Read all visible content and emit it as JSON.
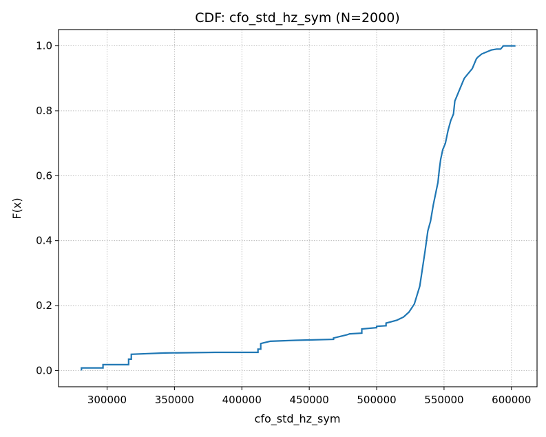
{
  "chart_data": {
    "type": "line",
    "title": "CDF: cfo_std_hz_sym  (N=2000)",
    "xlabel": "cfo_std_hz_sym",
    "ylabel": "F(x)",
    "xlim": [
      264000,
      619000
    ],
    "ylim": [
      -0.05,
      1.05
    ],
    "x_ticks": [
      300000,
      350000,
      400000,
      450000,
      500000,
      550000,
      600000
    ],
    "x_tick_labels": [
      "300000",
      "350000",
      "400000",
      "450000",
      "500000",
      "550000",
      "600000"
    ],
    "y_ticks": [
      0.0,
      0.2,
      0.4,
      0.6,
      0.8,
      1.0
    ],
    "y_tick_labels": [
      "0.0",
      "0.2",
      "0.4",
      "0.6",
      "0.8",
      "1.0"
    ],
    "grid": true,
    "line_color": "#1f77b4",
    "series": [
      {
        "x": [
          281000,
          281000,
          297000,
          297000,
          316000,
          316000,
          318000,
          318000,
          343000,
          380000,
          412000,
          412000,
          414000,
          414000,
          421000,
          440000,
          468000,
          468000,
          478000,
          480000,
          489000,
          489000,
          500000,
          500000,
          507000,
          507000,
          515000,
          520000,
          524000,
          528000,
          532000,
          534000,
          536000,
          538000,
          540000,
          542000,
          544000,
          545500,
          546500,
          547500,
          549000,
          551000,
          553000,
          555000,
          557000,
          558000,
          560000,
          561000,
          563000,
          565000,
          567000,
          569000,
          571000,
          573000,
          574000,
          575000,
          578000,
          582000,
          585000,
          589000,
          592000,
          594000,
          599000,
          603000
        ],
        "y": [
          0.0,
          0.008,
          0.008,
          0.018,
          0.018,
          0.035,
          0.035,
          0.05,
          0.054,
          0.056,
          0.056,
          0.066,
          0.066,
          0.083,
          0.09,
          0.093,
          0.096,
          0.1,
          0.11,
          0.113,
          0.115,
          0.128,
          0.132,
          0.136,
          0.138,
          0.146,
          0.155,
          0.165,
          0.18,
          0.205,
          0.26,
          0.315,
          0.37,
          0.43,
          0.46,
          0.51,
          0.55,
          0.58,
          0.62,
          0.65,
          0.68,
          0.7,
          0.74,
          0.77,
          0.79,
          0.83,
          0.85,
          0.86,
          0.88,
          0.9,
          0.91,
          0.92,
          0.93,
          0.95,
          0.96,
          0.965,
          0.975,
          0.982,
          0.987,
          0.99,
          0.99,
          1.0,
          1.0,
          1.0
        ]
      }
    ]
  }
}
